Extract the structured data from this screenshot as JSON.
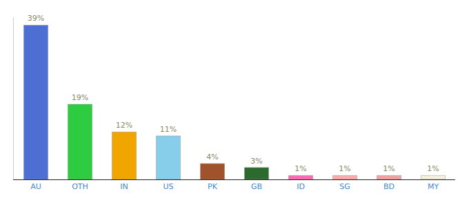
{
  "chart_data": {
    "type": "bar",
    "categories": [
      "AU",
      "OTH",
      "IN",
      "US",
      "PK",
      "GB",
      "ID",
      "SG",
      "BD",
      "MY"
    ],
    "values": [
      39,
      19,
      12,
      11,
      4,
      3,
      1,
      1,
      1,
      1
    ],
    "value_labels": [
      "39%",
      "19%",
      "12%",
      "11%",
      "4%",
      "3%",
      "1%",
      "1%",
      "1%",
      "1%"
    ],
    "colors": [
      "#4d6fd4",
      "#2ecc40",
      "#f0a500",
      "#87ceeb",
      "#a0522d",
      "#2d6a2d",
      "#ff69b4",
      "#ffaaaa",
      "#f4a0a0",
      "#f5f0dc"
    ],
    "ylim": [
      0,
      41
    ],
    "grid": false,
    "data_labels": true,
    "tick_labels": "x"
  }
}
